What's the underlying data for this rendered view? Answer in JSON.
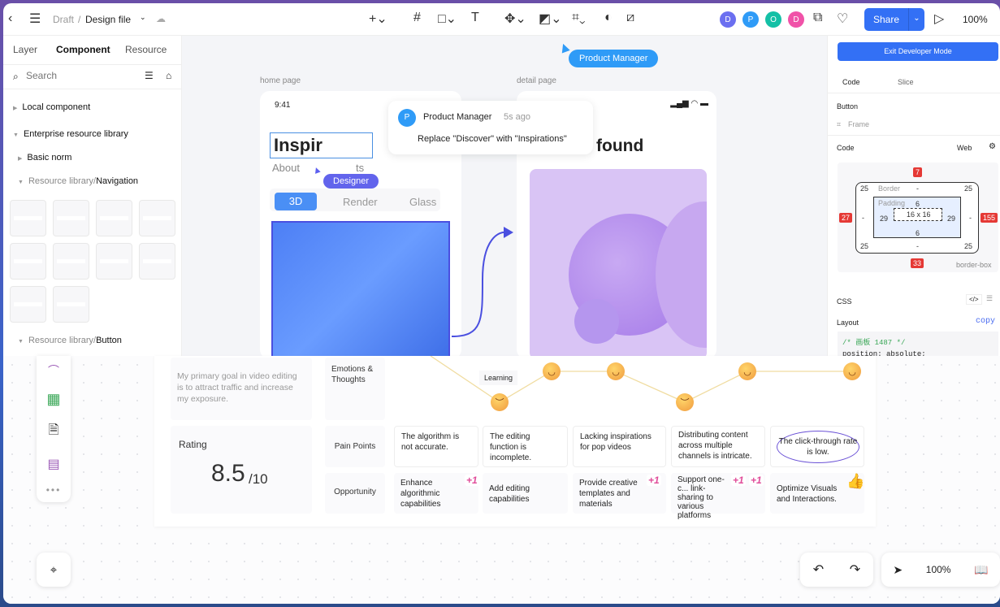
{
  "topbar": {
    "breadcrumb_parent": "Draft",
    "breadcrumb_sep": "/",
    "file_name": "Design file",
    "share": "Share",
    "zoom": "100%",
    "avatars": [
      {
        "letter": "D",
        "color": "#6b6ff0"
      },
      {
        "letter": "P",
        "color": "#2f9bf7"
      },
      {
        "letter": "O",
        "color": "#14c0a6"
      },
      {
        "letter": "D",
        "color": "#f052a8"
      }
    ]
  },
  "left": {
    "tabs": [
      "Layer",
      "Component",
      "Resource"
    ],
    "search_placeholder": "Search",
    "tree": {
      "local": "Local component",
      "enterprise": "Enterprise resource library",
      "basic": "Basic norm",
      "nav_prefix": "Resource library/",
      "nav": "Navigation",
      "btn_prefix": "Resource library/",
      "btn": "Button"
    }
  },
  "canvas": {
    "home_label": "home page",
    "detail_label": "detail page",
    "time": "9:41",
    "title": "Inspir",
    "subtitle_a": "About",
    "subtitle_b": "ts",
    "tabs": [
      "3D",
      "Render",
      "Glass"
    ],
    "detail_title": "found",
    "designer_cursor": "Designer",
    "pm_cursor": "Product Manager",
    "comment": {
      "avatar": "P",
      "author": "Product Manager",
      "time": "5s ago",
      "text": "Replace \"Discover\" with \"Inspirations\""
    }
  },
  "right": {
    "exit": "Exit Developer Mode",
    "tabs": [
      "Code",
      "Slice"
    ],
    "element": "Button",
    "type": "Frame",
    "code_label": "Code",
    "platform": "Web",
    "box": {
      "top": "7",
      "left": "27",
      "right": "155",
      "bottom": "33",
      "border_label": "Border",
      "radius": "25",
      "dash": "-",
      "padding_label": "Padding",
      "pad_top": "6",
      "pad_bottom": "6",
      "pad_left": "29",
      "pad_right": "29",
      "size": "16 x 16",
      "sizing": "border-box"
    },
    "css": "CSS",
    "layout": "Layout",
    "copy": "copy",
    "code_line1": "/* 画板 1487 */",
    "code_line2": "position: absolute;"
  },
  "journey": {
    "goal": "My primary goal in video editing is to attract traffic and increase my exposure.",
    "rating_label": "Rating",
    "rating": "8.5",
    "rating_max": "/10",
    "rows": {
      "emotions": "Emotions & Thoughts",
      "pain": "Pain Points",
      "opportunity": "Opportunity"
    },
    "learning": "Learning",
    "pain_points": [
      "The algorithm is not accurate.",
      "The editing function is incomplete.",
      "Lacking inspirations for pop videos",
      "Distributing content across multiple channels is intricate.",
      "The click-through rate is low."
    ],
    "opportunities": [
      "Enhance algorithmic capabilities",
      "Add editing capabilities",
      "Provide creative templates and materials",
      "Support one-c... link-sharing to various platforms",
      "Optimize Visuals and Interactions."
    ],
    "plus_one": "+1"
  },
  "bottom": {
    "zoom": "100%"
  }
}
